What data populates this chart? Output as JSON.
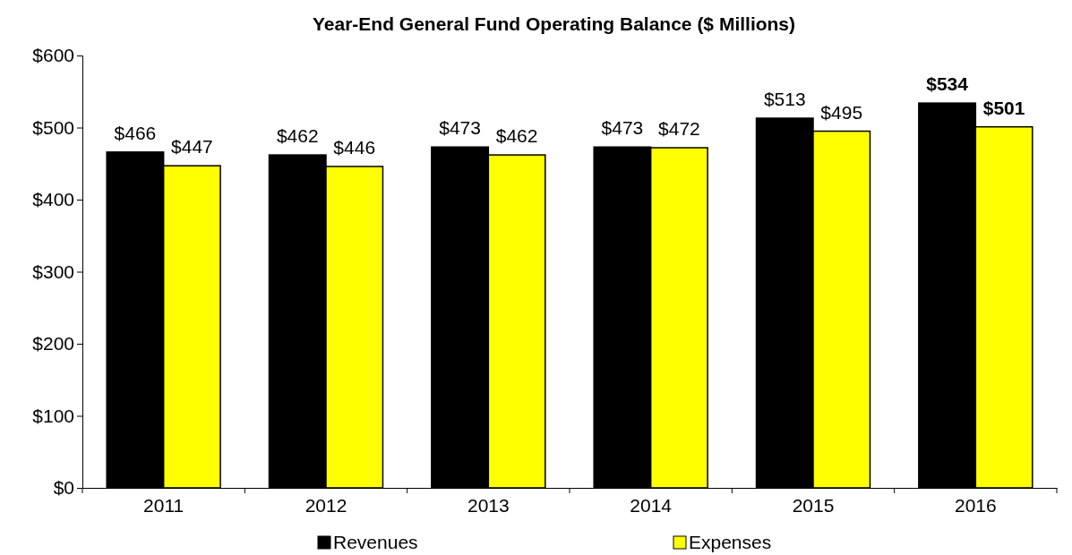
{
  "chart_data": {
    "type": "bar",
    "title": "Year-End General Fund Operating Balance ($ Millions)",
    "categories": [
      "2011",
      "2012",
      "2013",
      "2014",
      "2015",
      "2016"
    ],
    "series": [
      {
        "name": "Revenues",
        "color": "#000000",
        "values": [
          466,
          462,
          473,
          473,
          513,
          534
        ],
        "value_labels": [
          "$466",
          "$462",
          "$473",
          "$473",
          "$513",
          "$534"
        ]
      },
      {
        "name": "Expenses",
        "color": "#ffff00",
        "values": [
          447,
          446,
          462,
          472,
          495,
          501
        ],
        "value_labels": [
          "$447",
          "$446",
          "$462",
          "$472",
          "$495",
          "$501"
        ]
      }
    ],
    "ylim": [
      0,
      600
    ],
    "yticks": [
      {
        "value": 0,
        "label": "$0"
      },
      {
        "value": 100,
        "label": "$100"
      },
      {
        "value": 200,
        "label": "$200"
      },
      {
        "value": 300,
        "label": "$300"
      },
      {
        "value": 400,
        "label": "$400"
      },
      {
        "value": 500,
        "label": "$500"
      },
      {
        "value": 600,
        "label": "$600"
      }
    ],
    "grid": false,
    "legend": "bottom"
  }
}
